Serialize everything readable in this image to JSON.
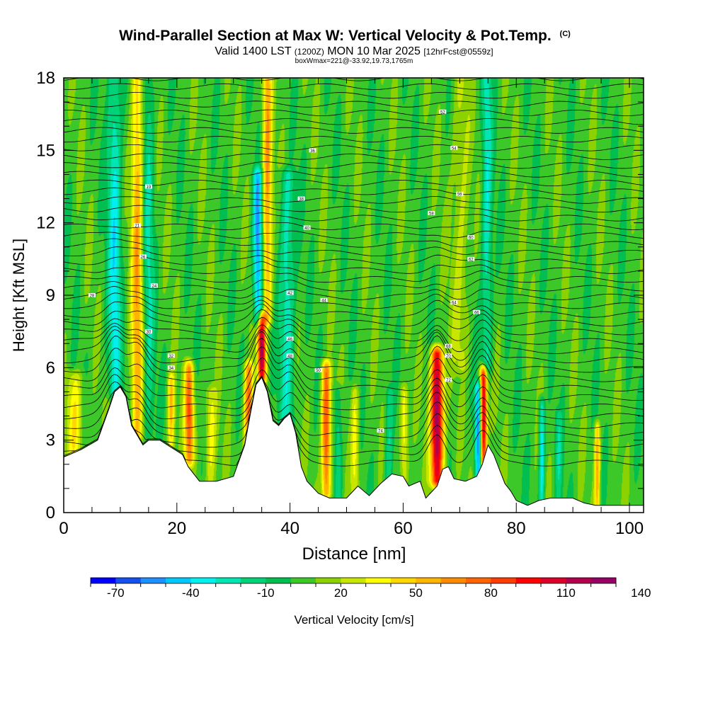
{
  "chart_data": {
    "type": "heatmap",
    "title": "Wind-Parallel Section at Max W: Vertical Velocity & Pot.Temp.",
    "title_mark": "(C)",
    "subtitle_parts": {
      "valid": "Valid 1400 LST",
      "utc": "(1200Z)",
      "date": "MON 10 Mar 2025",
      "fcst": "[12hrFcst@0559z]"
    },
    "subtitle2": "boxWmax=221@-33.92,19.73,1765m",
    "xlabel": "Distance [nm]",
    "ylabel": "Height [Kft MSL]",
    "xlim": [
      0,
      102.5
    ],
    "ylim": [
      0,
      18
    ],
    "x_ticks": [
      0,
      20,
      40,
      60,
      80,
      100
    ],
    "y_ticks": [
      0,
      3,
      6,
      9,
      12,
      15,
      18
    ],
    "colorbar": {
      "label": "Vertical Velocity [cm/s]",
      "min": -80,
      "step": 10,
      "tick_values": [
        -70,
        -40,
        -10,
        20,
        50,
        80,
        110,
        140
      ],
      "colors": [
        "#0000ff",
        "#1450f0",
        "#1e90ff",
        "#00c8ff",
        "#00f0f0",
        "#00e6b4",
        "#00d278",
        "#00be50",
        "#3cc828",
        "#8cd200",
        "#c8e600",
        "#ffff00",
        "#ffd700",
        "#ffb400",
        "#ff8c00",
        "#ff6400",
        "#ff3c00",
        "#ff0000",
        "#dc0028",
        "#b4004b",
        "#960064"
      ]
    },
    "terrain_kft": [
      [
        0,
        2.3
      ],
      [
        3,
        2.6
      ],
      [
        6,
        3.0
      ],
      [
        8,
        4.3
      ],
      [
        9,
        5.0
      ],
      [
        10,
        5.2
      ],
      [
        11,
        4.8
      ],
      [
        12,
        3.6
      ],
      [
        13,
        3.2
      ],
      [
        14,
        2.8
      ],
      [
        15,
        3.0
      ],
      [
        17,
        3.0
      ],
      [
        19,
        2.7
      ],
      [
        21,
        2.4
      ],
      [
        22,
        1.9
      ],
      [
        24,
        1.3
      ],
      [
        27,
        1.3
      ],
      [
        30,
        1.5
      ],
      [
        32,
        2.8
      ],
      [
        33,
        4.1
      ],
      [
        34,
        5.3
      ],
      [
        35,
        5.6
      ],
      [
        36,
        5.0
      ],
      [
        37,
        3.8
      ],
      [
        38,
        3.6
      ],
      [
        39,
        3.9
      ],
      [
        40,
        4.1
      ],
      [
        41,
        3.3
      ],
      [
        42,
        1.9
      ],
      [
        43,
        1.3
      ],
      [
        45,
        0.8
      ],
      [
        47,
        0.6
      ],
      [
        50,
        0.6
      ],
      [
        52,
        1.1
      ],
      [
        54,
        0.7
      ],
      [
        56,
        1.2
      ],
      [
        58,
        1.6
      ],
      [
        60,
        1.5
      ],
      [
        61,
        1.1
      ],
      [
        63,
        1.3
      ],
      [
        64,
        0.6
      ],
      [
        66,
        1.1
      ],
      [
        67,
        1.8
      ],
      [
        68,
        1.9
      ],
      [
        69,
        1.4
      ],
      [
        71,
        1.3
      ],
      [
        73,
        1.5
      ],
      [
        74,
        2.0
      ],
      [
        75,
        2.8
      ],
      [
        76,
        2.4
      ],
      [
        77,
        1.8
      ],
      [
        78,
        1.2
      ],
      [
        79,
        0.9
      ],
      [
        80,
        0.5
      ],
      [
        82,
        0.3
      ],
      [
        84,
        0.5
      ],
      [
        86,
        0.6
      ],
      [
        88,
        0.6
      ],
      [
        90,
        0.6
      ],
      [
        92,
        0.4
      ],
      [
        94,
        0.3
      ],
      [
        97,
        0.3
      ],
      [
        100,
        0.3
      ],
      [
        102.5,
        0.3
      ]
    ],
    "updrafts": [
      {
        "x": 13.0,
        "z0": 3.2,
        "z1": 18,
        "w": 1.0,
        "amp": 55
      },
      {
        "x": 9.0,
        "z0": 5.0,
        "z1": 18,
        "w": 1.2,
        "amp": -40
      },
      {
        "x": 35.0,
        "z0": 5.6,
        "z1": 8.0,
        "w": 0.7,
        "amp": 115
      },
      {
        "x": 36.0,
        "z0": 8.0,
        "z1": 18,
        "w": 0.8,
        "amp": 60
      },
      {
        "x": 34.3,
        "z0": 8.0,
        "z1": 14,
        "w": 0.8,
        "amp": -60
      },
      {
        "x": 39.5,
        "z0": 3.8,
        "z1": 14,
        "w": 1.3,
        "amp": -35
      },
      {
        "x": 22.2,
        "z0": 2.2,
        "z1": 6,
        "w": 0.8,
        "amp": 75
      },
      {
        "x": 32.7,
        "z0": 2.5,
        "z1": 6,
        "w": 0.8,
        "amp": 70
      },
      {
        "x": 46.4,
        "z0": 0.8,
        "z1": 6,
        "w": 0.8,
        "amp": 80
      },
      {
        "x": 66.0,
        "z0": 1.3,
        "z1": 6.6,
        "w": 1.1,
        "amp": 125
      },
      {
        "x": 74.2,
        "z0": 2.1,
        "z1": 5.8,
        "w": 0.6,
        "amp": 115
      },
      {
        "x": 73.3,
        "z0": 1.6,
        "z1": 5.2,
        "w": 0.6,
        "amp": -65
      },
      {
        "x": 74.8,
        "z0": 6.0,
        "z1": 18,
        "w": 0.9,
        "amp": -35
      },
      {
        "x": 70.2,
        "z0": 6.0,
        "z1": 18,
        "w": 1.5,
        "amp": 20
      },
      {
        "x": 15.0,
        "z0": 3.2,
        "z1": 18,
        "w": 1.0,
        "amp": -25
      },
      {
        "x": 57.5,
        "z0": 0.6,
        "z1": 5,
        "w": 0.7,
        "amp": -25
      },
      {
        "x": 60.2,
        "z0": 1.4,
        "z1": 5,
        "w": 0.7,
        "amp": 35
      },
      {
        "x": 51.5,
        "z0": 0.7,
        "z1": 5,
        "w": 0.7,
        "amp": 30
      },
      {
        "x": 84.5,
        "z0": 0.5,
        "z1": 4.5,
        "w": 0.5,
        "amp": -45
      },
      {
        "x": 94.3,
        "z0": 0.3,
        "z1": 3.5,
        "w": 0.5,
        "amp": 55
      },
      {
        "x": 2.0,
        "z0": 2.3,
        "z1": 5.6,
        "w": 1.4,
        "amp": 35
      },
      {
        "x": 19.0,
        "z0": 2.8,
        "z1": 5.5,
        "w": 0.6,
        "amp": 50
      },
      {
        "x": 26.0,
        "z0": 1.3,
        "z1": 5.0,
        "w": 1.0,
        "amp": 30
      },
      {
        "x": 48.5,
        "z0": 0.6,
        "z1": 5.0,
        "w": 0.7,
        "amp": -25
      },
      {
        "x": 87.5,
        "z0": 0.6,
        "z1": 4.0,
        "w": 0.6,
        "amp": -20
      }
    ],
    "isentrope_count": 44,
    "isentrope_labels": [
      "19",
      "21",
      "24",
      "26",
      "28",
      "30",
      "32",
      "34",
      "36",
      "38",
      "40",
      "42",
      "44",
      "46",
      "48",
      "50",
      "52",
      "54",
      "56",
      "58",
      "60",
      "62",
      "64",
      "66",
      "68",
      "70",
      "72",
      "74"
    ],
    "plot_colors": {
      "frame": "#000000",
      "terrain": "#ffffff",
      "contour": "#000000"
    }
  }
}
